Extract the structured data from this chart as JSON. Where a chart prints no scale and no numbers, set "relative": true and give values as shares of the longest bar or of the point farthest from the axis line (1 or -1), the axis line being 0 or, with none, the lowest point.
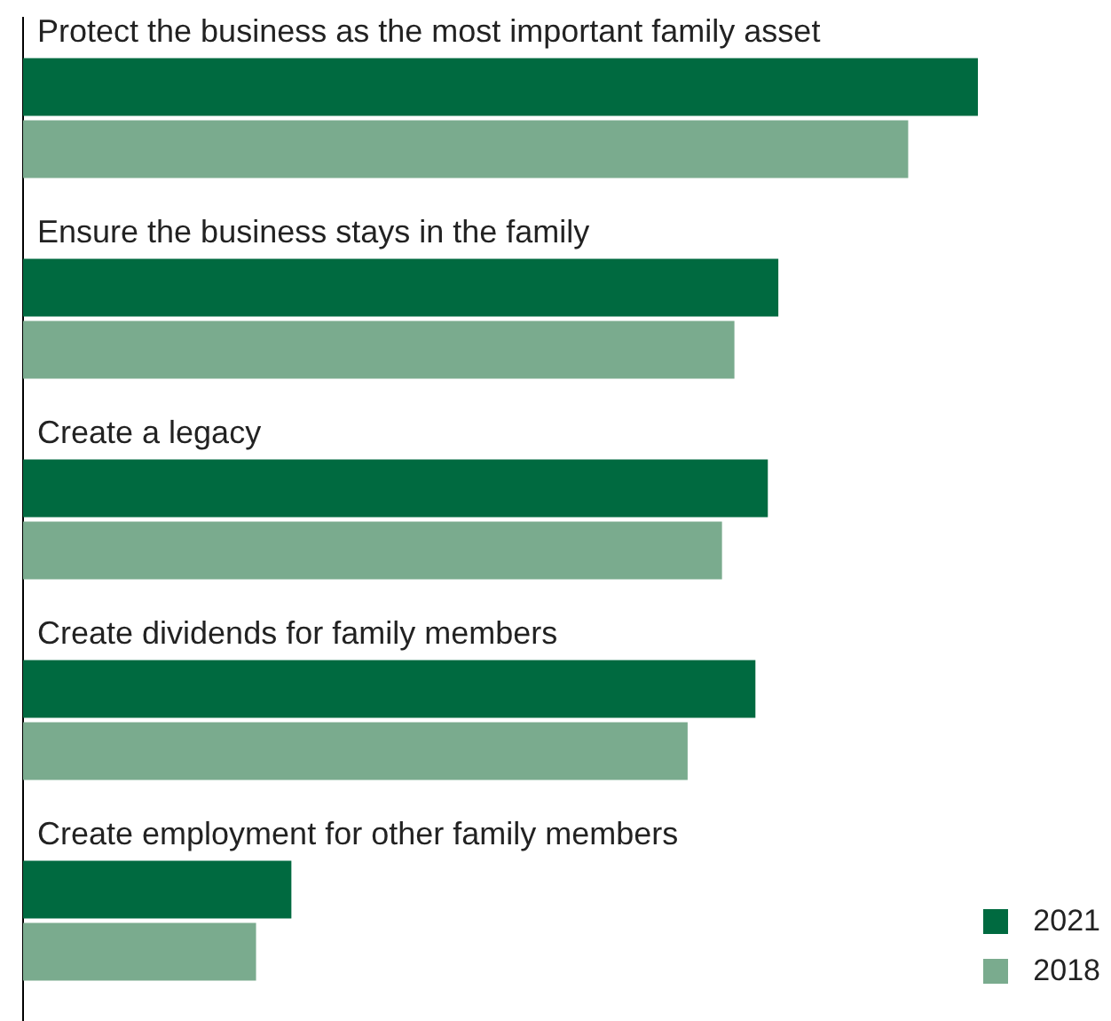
{
  "chart_data": {
    "type": "bar",
    "orientation": "horizontal",
    "relative": true,
    "legend": "bottom right",
    "categories": [
      "Protect the business as the most important family asset",
      "Ensure the business stays in the family",
      "Create a legacy",
      "Create dividends for family members",
      "Create employment for other family members"
    ],
    "series": [
      {
        "name": "2021",
        "color": "#006a40",
        "values": [
          1,
          0.791,
          0.78,
          0.767,
          0.281
        ]
      },
      {
        "name": "2018",
        "color": "#7aab8e",
        "values": [
          0.927,
          0.745,
          0.732,
          0.696,
          0.244
        ]
      }
    ]
  }
}
